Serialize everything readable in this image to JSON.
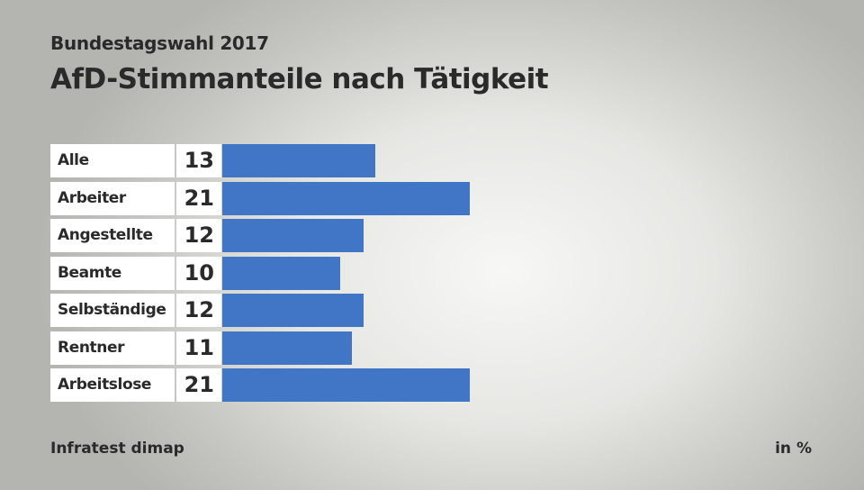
{
  "chart_data": {
    "type": "bar",
    "subtitle": "Bundestagswahl 2017",
    "title": "AfD-Stimmanteile nach Tätigkeit",
    "categories": [
      "Alle",
      "Arbeiter",
      "Angestellte",
      "Beamte",
      "Selbständige",
      "Rentner",
      "Arbeitslose"
    ],
    "values": [
      13,
      21,
      12,
      10,
      12,
      11,
      21
    ],
    "unit": "in %",
    "source": "Infratest dimap",
    "xlim": [
      0,
      21
    ],
    "bar_color": "#4176c6"
  }
}
